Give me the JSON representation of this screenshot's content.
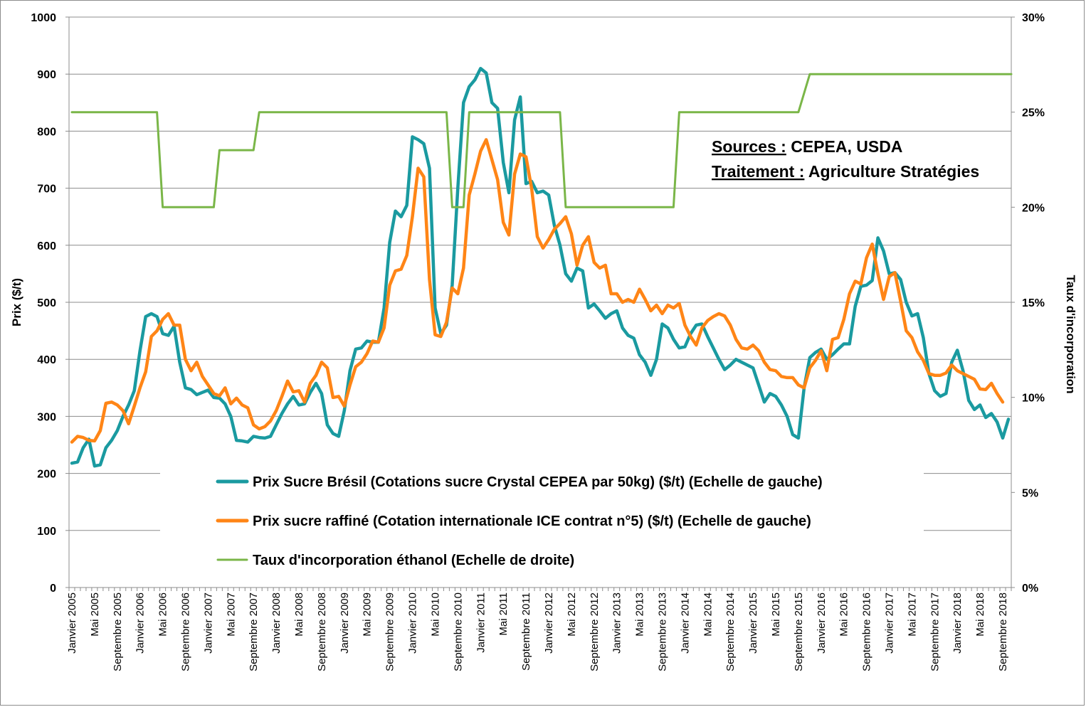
{
  "chart_data": {
    "type": "line",
    "title": "",
    "ylabel": "Prix ($/t)",
    "y2label": "Taux d'incorporation",
    "ylim": [
      0,
      1000
    ],
    "y2lim": [
      0,
      0.3
    ],
    "yticks": [
      "0",
      "100",
      "200",
      "300",
      "400",
      "500",
      "600",
      "700",
      "800",
      "900",
      "1000"
    ],
    "y2ticks": [
      "0%",
      "5%",
      "10%",
      "15%",
      "20%",
      "25%",
      "30%"
    ],
    "grid": "horizontal",
    "x_start": "Janvier 2005",
    "x_end": "Octobre 2018",
    "x_tick_labels": [
      "Janvier 2005",
      "Mai 2005",
      "Septembre 2005",
      "Janvier 2006",
      "Mai 2006",
      "Septembre 2006",
      "Janvier 2007",
      "Mai 2007",
      "Septembre 2007",
      "Janvier 2008",
      "Mai 2008",
      "Septembre 2008",
      "Janvier 2009",
      "Mai 2009",
      "Septembre 2009",
      "Janvier 2010",
      "Mai 2010",
      "Septembre 2010",
      "Janvier 2011",
      "Mai 2011",
      "Septembre 2011",
      "Janvier 2012",
      "Mai 2012",
      "Septembre 2012",
      "Janvier 2013",
      "Mai 2013",
      "Septembre 2013",
      "Janvier 2014",
      "Mai 2014",
      "Septembre 2014",
      "Janvier 2015",
      "Mai 2015",
      "Septembre 2015",
      "Janvier 2016",
      "Mai 2016",
      "Septembre 2016",
      "Janvier 2017",
      "Mai 2017",
      "Septembre 2017",
      "Janvier 2018",
      "Mai 2018",
      "Septembre 2018"
    ],
    "legend_position": "bottom-center (inside plot)",
    "series": [
      {
        "name": "Prix Sucre Brésil (Cotations sucre Crystal CEPEA par 50kg) ($/t) (Echelle de gauche)",
        "color": "#1a9aa0",
        "axis": "left",
        "values": [
          218,
          220,
          245,
          260,
          213,
          215,
          245,
          258,
          275,
          300,
          320,
          345,
          415,
          475,
          480,
          475,
          445,
          442,
          458,
          395,
          350,
          347,
          338,
          342,
          346,
          333,
          332,
          322,
          300,
          258,
          257,
          255,
          265,
          263,
          262,
          265,
          285,
          305,
          322,
          335,
          320,
          322,
          342,
          358,
          340,
          285,
          270,
          265,
          310,
          380,
          418,
          420,
          432,
          430,
          430,
          490,
          605,
          660,
          650,
          670,
          790,
          785,
          778,
          735,
          490,
          445,
          460,
          530,
          700,
          850,
          878,
          890,
          910,
          902,
          850,
          840,
          745,
          692,
          820,
          860,
          708,
          712,
          692,
          695,
          688,
          635,
          600,
          550,
          537,
          560,
          555,
          490,
          497,
          485,
          472,
          480,
          485,
          455,
          442,
          437,
          408,
          395,
          372,
          400,
          462,
          455,
          435,
          420,
          422,
          445,
          460,
          462,
          440,
          420,
          400,
          382,
          390,
          400,
          395,
          390,
          385,
          355,
          325,
          340,
          335,
          320,
          300,
          268,
          262,
          350,
          403,
          412,
          418,
          400,
          408,
          418,
          427,
          427,
          493,
          528,
          530,
          538,
          613,
          590,
          550,
          552,
          540,
          500,
          476,
          480,
          438,
          375,
          345,
          335,
          340,
          395,
          416,
          380,
          328,
          312,
          320,
          298,
          305,
          290,
          262,
          295
        ]
      },
      {
        "name": "Prix sucre raffiné (Cotation internationale ICE contrat n°5) ($/t) (Echelle de gauche)",
        "color": "#ff8516",
        "axis": "left",
        "values": [
          255,
          265,
          263,
          258,
          257,
          275,
          323,
          325,
          320,
          310,
          287,
          318,
          350,
          378,
          440,
          450,
          470,
          480,
          460,
          460,
          400,
          380,
          395,
          370,
          355,
          340,
          336,
          350,
          322,
          332,
          320,
          315,
          285,
          278,
          282,
          292,
          310,
          335,
          362,
          343,
          345,
          325,
          358,
          372,
          395,
          385,
          333,
          335,
          318,
          355,
          387,
          395,
          410,
          432,
          430,
          455,
          530,
          555,
          558,
          582,
          650,
          735,
          720,
          540,
          443,
          440,
          465,
          525,
          515,
          560,
          688,
          725,
          765,
          785,
          750,
          715,
          640,
          618,
          725,
          760,
          755,
          700,
          615,
          595,
          610,
          628,
          638,
          650,
          620,
          565,
          600,
          615,
          570,
          560,
          565,
          515,
          515,
          500,
          505,
          500,
          523,
          505,
          485,
          495,
          480,
          495,
          490,
          498,
          460,
          440,
          425,
          455,
          468,
          475,
          480,
          476,
          460,
          435,
          420,
          418,
          425,
          415,
          395,
          382,
          380,
          370,
          368,
          368,
          355,
          350,
          385,
          398,
          415,
          380,
          435,
          438,
          470,
          515,
          537,
          532,
          578,
          602,
          550,
          505,
          545,
          552,
          502,
          450,
          438,
          413,
          398,
          375,
          372,
          372,
          376,
          390,
          380,
          375,
          370,
          365,
          348,
          347,
          358,
          340,
          325
        ]
      },
      {
        "name": "Taux d'incorporation éthanol (Echelle de droite)",
        "color": "#7ab648",
        "axis": "right",
        "points": [
          [
            0,
            0.25
          ],
          [
            15,
            0.25
          ],
          [
            16,
            0.2
          ],
          [
            25,
            0.2
          ],
          [
            26,
            0.23
          ],
          [
            32,
            0.23
          ],
          [
            33,
            0.25
          ],
          [
            66,
            0.25
          ],
          [
            67,
            0.2
          ],
          [
            69,
            0.2
          ],
          [
            70,
            0.25
          ],
          [
            86,
            0.25
          ],
          [
            87,
            0.2
          ],
          [
            106,
            0.2
          ],
          [
            107,
            0.25
          ],
          [
            128,
            0.25
          ],
          [
            130,
            0.27
          ],
          [
            165,
            0.27
          ]
        ]
      }
    ],
    "annotations": [
      {
        "label": "Sources :",
        "text": " CEPEA, USDA"
      },
      {
        "label": "Traitement :",
        "text": " Agriculture Stratégies"
      }
    ]
  }
}
